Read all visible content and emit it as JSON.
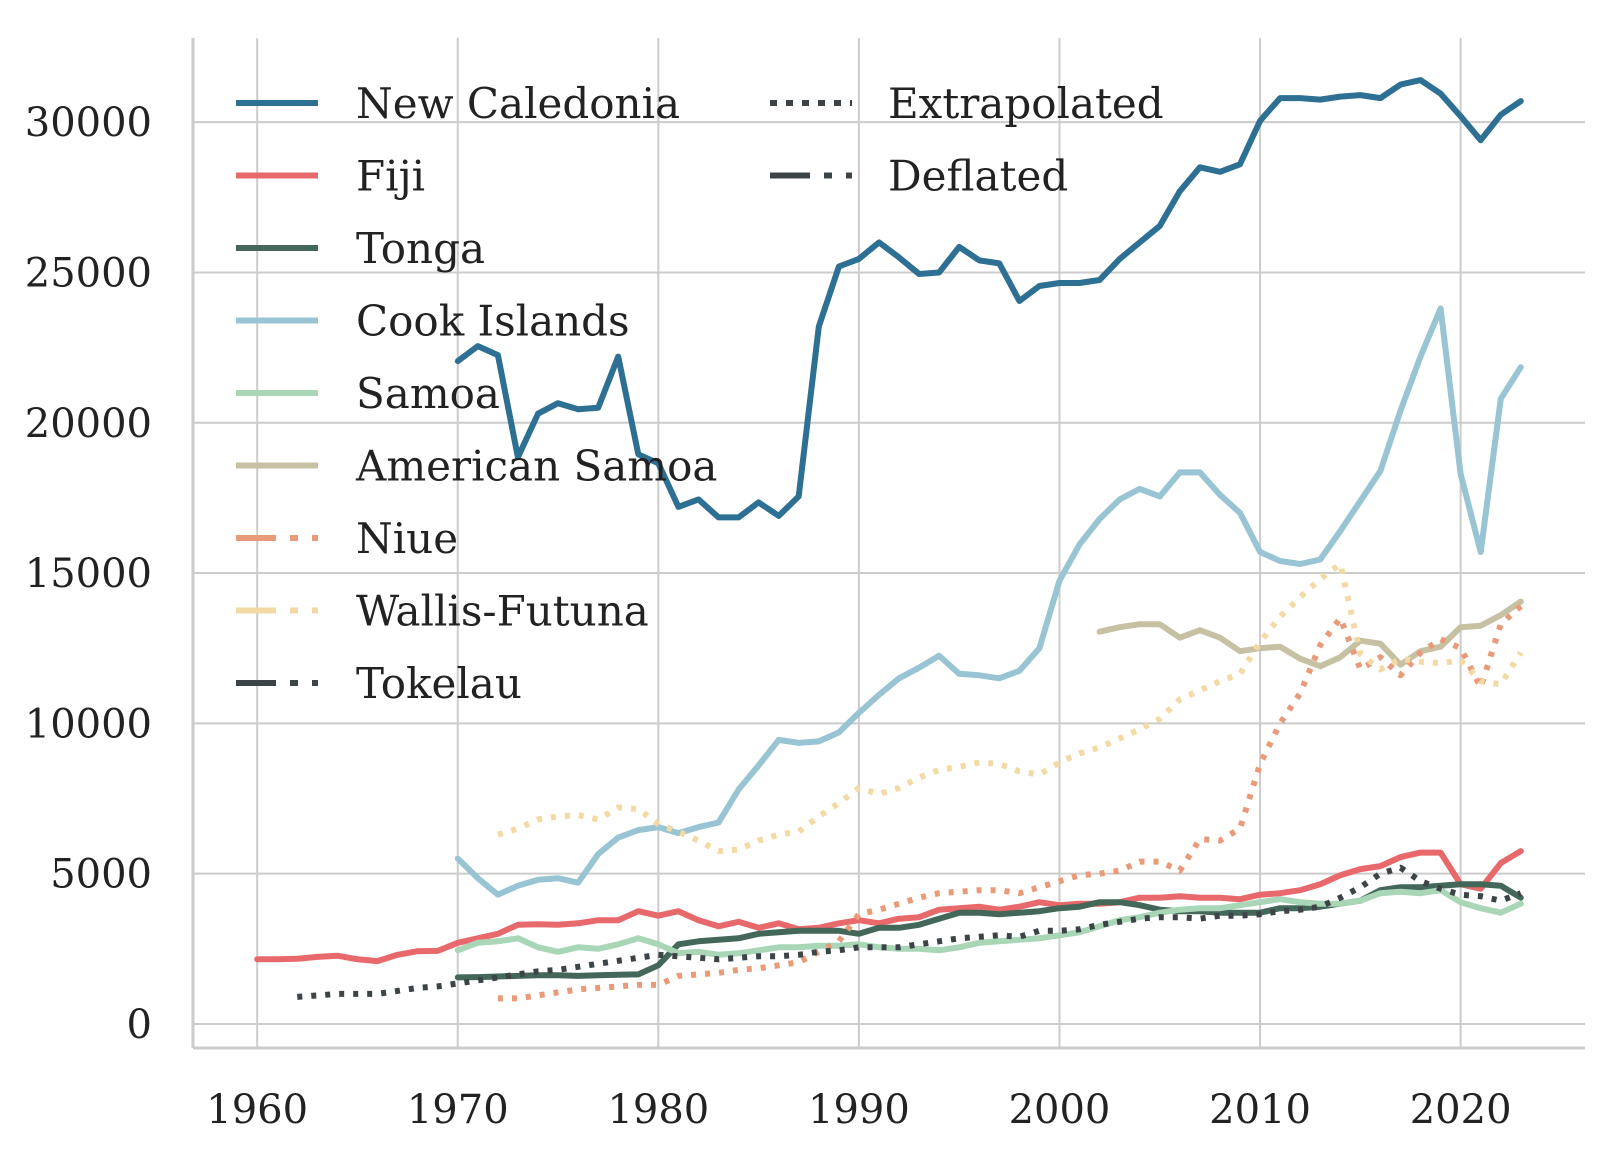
{
  "chart_data": {
    "type": "line",
    "title": "",
    "xlabel": "",
    "ylabel": "",
    "xlim": [
      1956.8,
      2026.2
    ],
    "ylim": [
      -800,
      32800
    ],
    "xticks": [
      "1960",
      "1970",
      "1980",
      "1990",
      "2000",
      "2010",
      "2020"
    ],
    "yticks": [
      "0",
      "5000",
      "10000",
      "15000",
      "20000",
      "25000",
      "30000"
    ],
    "grid": true,
    "legend_position": "top-left, two columns",
    "series": [
      {
        "name": "New Caledonia",
        "color": "#2d7093",
        "style": "solid",
        "x": [
          1970,
          1971,
          1972,
          1973,
          1974,
          1975,
          1976,
          1977,
          1978,
          1979,
          1980,
          1981,
          1982,
          1983,
          1984,
          1985,
          1986,
          1987,
          1988,
          1989,
          1990,
          1991,
          1992,
          1993,
          1994,
          1995,
          1996,
          1997,
          1998,
          1999,
          2000,
          2001,
          2002,
          2003,
          2004,
          2005,
          2006,
          2007,
          2008,
          2009,
          2010,
          2011,
          2012,
          2013,
          2014,
          2015,
          2016,
          2017,
          2018,
          2019,
          2020,
          2021,
          2022,
          2023
        ],
        "y": [
          22050,
          22550,
          22250,
          18850,
          20300,
          20650,
          20450,
          20500,
          22200,
          18950,
          18650,
          17200,
          17450,
          16850,
          16850,
          17350,
          16900,
          17550,
          23200,
          25200,
          25450,
          26000,
          25500,
          24950,
          25000,
          25850,
          25400,
          25300,
          24050,
          24550,
          24650,
          24650,
          24750,
          25450,
          26000,
          26550,
          27700,
          28500,
          28350,
          28600,
          30050,
          30800,
          30800,
          30750,
          30850,
          30900,
          30800,
          31250,
          31400,
          30950,
          30200,
          29400,
          30250,
          30700
        ]
      },
      {
        "name": "Fiji",
        "color": "#e8696b",
        "style": "solid",
        "x": [
          1960,
          1961,
          1962,
          1963,
          1964,
          1965,
          1966,
          1967,
          1968,
          1969,
          1970,
          1971,
          1972,
          1973,
          1974,
          1975,
          1976,
          1977,
          1978,
          1979,
          1980,
          1981,
          1982,
          1983,
          1984,
          1985,
          1986,
          1987,
          1988,
          1989,
          1990,
          1991,
          1992,
          1993,
          1994,
          1995,
          1996,
          1997,
          1998,
          1999,
          2000,
          2001,
          2002,
          2003,
          2004,
          2005,
          2006,
          2007,
          2008,
          2009,
          2010,
          2011,
          2012,
          2013,
          2014,
          2015,
          2016,
          2017,
          2018,
          2019,
          2020,
          2021,
          2022,
          2023
        ],
        "y": [
          2150,
          2150,
          2170,
          2230,
          2270,
          2150,
          2090,
          2300,
          2420,
          2430,
          2700,
          2850,
          3000,
          3300,
          3320,
          3300,
          3350,
          3450,
          3450,
          3750,
          3600,
          3750,
          3450,
          3250,
          3400,
          3200,
          3350,
          3150,
          3200,
          3350,
          3450,
          3350,
          3500,
          3550,
          3800,
          3850,
          3900,
          3800,
          3900,
          4050,
          3950,
          4000,
          4000,
          4050,
          4200,
          4200,
          4250,
          4200,
          4200,
          4150,
          4300,
          4350,
          4450,
          4650,
          4950,
          5150,
          5250,
          5550,
          5700,
          5700,
          4650,
          4500,
          5350,
          5750
        ]
      },
      {
        "name": "Tonga",
        "color": "#43685a",
        "style": "solid",
        "x": [
          1970,
          1971,
          1972,
          1973,
          1974,
          1975,
          1976,
          1977,
          1978,
          1979,
          1980,
          1981,
          1982,
          1983,
          1984,
          1985,
          1986,
          1987,
          1988,
          1989,
          1990,
          1991,
          1992,
          1993,
          1994,
          1995,
          1996,
          1997,
          1998,
          1999,
          2000,
          2001,
          2002,
          2003,
          2004,
          2005,
          2006,
          2007,
          2008,
          2009,
          2010,
          2011,
          2012,
          2013,
          2014,
          2015,
          2016,
          2017,
          2018,
          2019,
          2020,
          2021,
          2022,
          2023
        ],
        "y": [
          1550,
          1560,
          1580,
          1600,
          1620,
          1620,
          1600,
          1620,
          1640,
          1650,
          1950,
          2650,
          2750,
          2800,
          2850,
          3000,
          3050,
          3100,
          3100,
          3100,
          3000,
          3200,
          3200,
          3300,
          3500,
          3700,
          3700,
          3650,
          3700,
          3750,
          3850,
          3900,
          4050,
          4050,
          3950,
          3800,
          3750,
          3750,
          3700,
          3700,
          3700,
          3850,
          3850,
          3900,
          4000,
          4100,
          4450,
          4550,
          4550,
          4600,
          4650,
          4650,
          4600,
          4200
        ]
      },
      {
        "name": "Cook Islands",
        "color": "#98c4d3",
        "style": "solid",
        "x": [
          1970,
          1971,
          1972,
          1973,
          1974,
          1975,
          1976,
          1977,
          1978,
          1979,
          1980,
          1981,
          1982,
          1983,
          1984,
          1985,
          1986,
          1987,
          1988,
          1989,
          1990,
          1991,
          1992,
          1993,
          1994,
          1995,
          1996,
          1997,
          1998,
          1999,
          2000,
          2001,
          2002,
          2003,
          2004,
          2005,
          2006,
          2007,
          2008,
          2009,
          2010,
          2011,
          2012,
          2013,
          2014,
          2015,
          2016,
          2017,
          2018,
          2019,
          2020,
          2021,
          2022,
          2023
        ],
        "y": [
          5500,
          4850,
          4300,
          4600,
          4800,
          4850,
          4700,
          5650,
          6200,
          6450,
          6550,
          6350,
          6550,
          6700,
          7800,
          8600,
          9450,
          9350,
          9400,
          9700,
          10350,
          10950,
          11500,
          11850,
          12250,
          11650,
          11600,
          11500,
          11750,
          12500,
          14750,
          15950,
          16800,
          17450,
          17800,
          17550,
          18350,
          18350,
          17600,
          17000,
          15700,
          15400,
          15300,
          15450,
          16400,
          17400,
          18400,
          20400,
          22200,
          23800,
          18300,
          15700,
          20800,
          21850
        ]
      },
      {
        "name": "Samoa",
        "color": "#a8d6b6",
        "style": "solid",
        "x": [
          1970,
          1971,
          1972,
          1973,
          1974,
          1975,
          1976,
          1977,
          1978,
          1979,
          1980,
          1981,
          1982,
          1983,
          1984,
          1985,
          1986,
          1987,
          1988,
          1989,
          1990,
          1991,
          1992,
          1993,
          1994,
          1995,
          1996,
          1997,
          1998,
          1999,
          2000,
          2001,
          2002,
          2003,
          2004,
          2005,
          2006,
          2007,
          2008,
          2009,
          2010,
          2011,
          2012,
          2013,
          2014,
          2015,
          2016,
          2017,
          2018,
          2019,
          2020,
          2021,
          2022,
          2023
        ],
        "y": [
          2450,
          2700,
          2750,
          2850,
          2550,
          2400,
          2550,
          2500,
          2650,
          2850,
          2650,
          2350,
          2400,
          2300,
          2350,
          2450,
          2550,
          2550,
          2600,
          2600,
          2650,
          2550,
          2500,
          2500,
          2450,
          2550,
          2700,
          2750,
          2800,
          2850,
          2950,
          3050,
          3250,
          3450,
          3550,
          3700,
          3800,
          3850,
          3850,
          3950,
          4050,
          4150,
          4050,
          4000,
          4000,
          4100,
          4350,
          4400,
          4350,
          4450,
          4050,
          3850,
          3700,
          4000
        ]
      },
      {
        "name": "American Samoa",
        "color": "#c7c1a3",
        "style": "solid",
        "x": [
          2002,
          2003,
          2004,
          2005,
          2006,
          2007,
          2008,
          2009,
          2010,
          2011,
          2012,
          2013,
          2014,
          2015,
          2016,
          2017,
          2018,
          2019,
          2020,
          2021,
          2022,
          2023
        ],
        "y": [
          13050,
          13200,
          13300,
          13300,
          12850,
          13100,
          12850,
          12400,
          12500,
          12550,
          12150,
          11900,
          12200,
          12750,
          12650,
          11950,
          12400,
          12550,
          13200,
          13250,
          13600,
          14050
        ]
      },
      {
        "name": "Niue",
        "color": "#e99a78",
        "style": "dashdot",
        "x": [
          1972,
          1973,
          1974,
          1975,
          1976,
          1977,
          1978,
          1979,
          1980,
          1981,
          1982,
          1983,
          1984,
          1985,
          1986,
          1987,
          1988,
          1989,
          1990,
          1991,
          1992,
          1993,
          1994,
          1995,
          1996,
          1997,
          1998,
          1999,
          2000,
          2001,
          2002,
          2003,
          2004,
          2005,
          2006,
          2007,
          2008,
          2009,
          2010,
          2011,
          2012,
          2013,
          2014,
          2015,
          2016,
          2017,
          2018,
          2019,
          2020,
          2021,
          2022,
          2023
        ],
        "y": [
          850,
          850,
          950,
          1050,
          1150,
          1200,
          1250,
          1300,
          1300,
          1600,
          1650,
          1700,
          1800,
          1850,
          1950,
          2050,
          2400,
          2750,
          3650,
          3800,
          4000,
          4200,
          4350,
          4400,
          4450,
          4450,
          4350,
          4550,
          4750,
          4950,
          5000,
          5100,
          5400,
          5400,
          5100,
          6150,
          6100,
          6500,
          8650,
          10000,
          11000,
          12600,
          13500,
          11800,
          12200,
          11600,
          12350,
          12800,
          12500,
          11200,
          13300,
          13900
        ]
      },
      {
        "name": "Wallis-Futuna",
        "color": "#f3d9a4",
        "style": "dashdot",
        "x": [
          1972,
          1973,
          1974,
          1975,
          1976,
          1977,
          1978,
          1979,
          1980,
          1981,
          1982,
          1983,
          1984,
          1985,
          1986,
          1987,
          1988,
          1989,
          1990,
          1991,
          1992,
          1993,
          1994,
          1995,
          1996,
          1997,
          1998,
          1999,
          2000,
          2001,
          2002,
          2003,
          2004,
          2005,
          2006,
          2007,
          2008,
          2009,
          2010,
          2011,
          2012,
          2013,
          2014,
          2015,
          2016,
          2017,
          2018,
          2019,
          2020,
          2021,
          2022,
          2023
        ],
        "y": [
          6300,
          6500,
          6800,
          6900,
          6950,
          6800,
          7200,
          7150,
          6650,
          6400,
          6100,
          5750,
          5800,
          6100,
          6300,
          6400,
          6900,
          7350,
          7850,
          7650,
          7850,
          8200,
          8450,
          8550,
          8700,
          8650,
          8400,
          8300,
          8700,
          9000,
          9200,
          9500,
          9800,
          10150,
          10800,
          11100,
          11400,
          11650,
          12700,
          13550,
          14200,
          14800,
          15300,
          12300,
          11800,
          12150,
          12050,
          12000,
          12100,
          11400,
          11300,
          12350
        ]
      },
      {
        "name": "Tokelau",
        "color": "#3d4448",
        "style": "dashdot",
        "x": [
          1962,
          1963,
          1964,
          1965,
          1966,
          1967,
          1968,
          1969,
          1970,
          1971,
          1972,
          1973,
          1974,
          1975,
          1976,
          1977,
          1978,
          1979,
          1980,
          1981,
          1982,
          1983,
          1984,
          1985,
          1986,
          1987,
          1988,
          1989,
          1990,
          1991,
          1992,
          1993,
          1994,
          1995,
          1996,
          1997,
          1998,
          1999,
          2000,
          2001,
          2002,
          2003,
          2004,
          2005,
          2006,
          2007,
          2008,
          2009,
          2010,
          2011,
          2012,
          2013,
          2014,
          2015,
          2016,
          2017,
          2018,
          2019,
          2020,
          2021,
          2022,
          2023
        ],
        "y": [
          900,
          950,
          1000,
          1000,
          1000,
          1100,
          1200,
          1250,
          1350,
          1450,
          1550,
          1650,
          1750,
          1800,
          1900,
          2000,
          2100,
          2200,
          2300,
          2250,
          2200,
          2150,
          2200,
          2250,
          2250,
          2300,
          2400,
          2450,
          2550,
          2550,
          2550,
          2650,
          2750,
          2850,
          2900,
          2950,
          2900,
          3100,
          3100,
          3150,
          3300,
          3400,
          3500,
          3550,
          3550,
          3500,
          3600,
          3600,
          3650,
          3750,
          3800,
          3900,
          4200,
          4550,
          5000,
          5200,
          4750,
          4500,
          4300,
          4250,
          4100,
          4350
        ]
      }
    ],
    "style_legend": [
      {
        "name": "Extrapolated",
        "color": "#3d4448",
        "style": "dotted"
      },
      {
        "name": "Deflated",
        "color": "#3d4448",
        "style": "dashdot"
      }
    ]
  }
}
